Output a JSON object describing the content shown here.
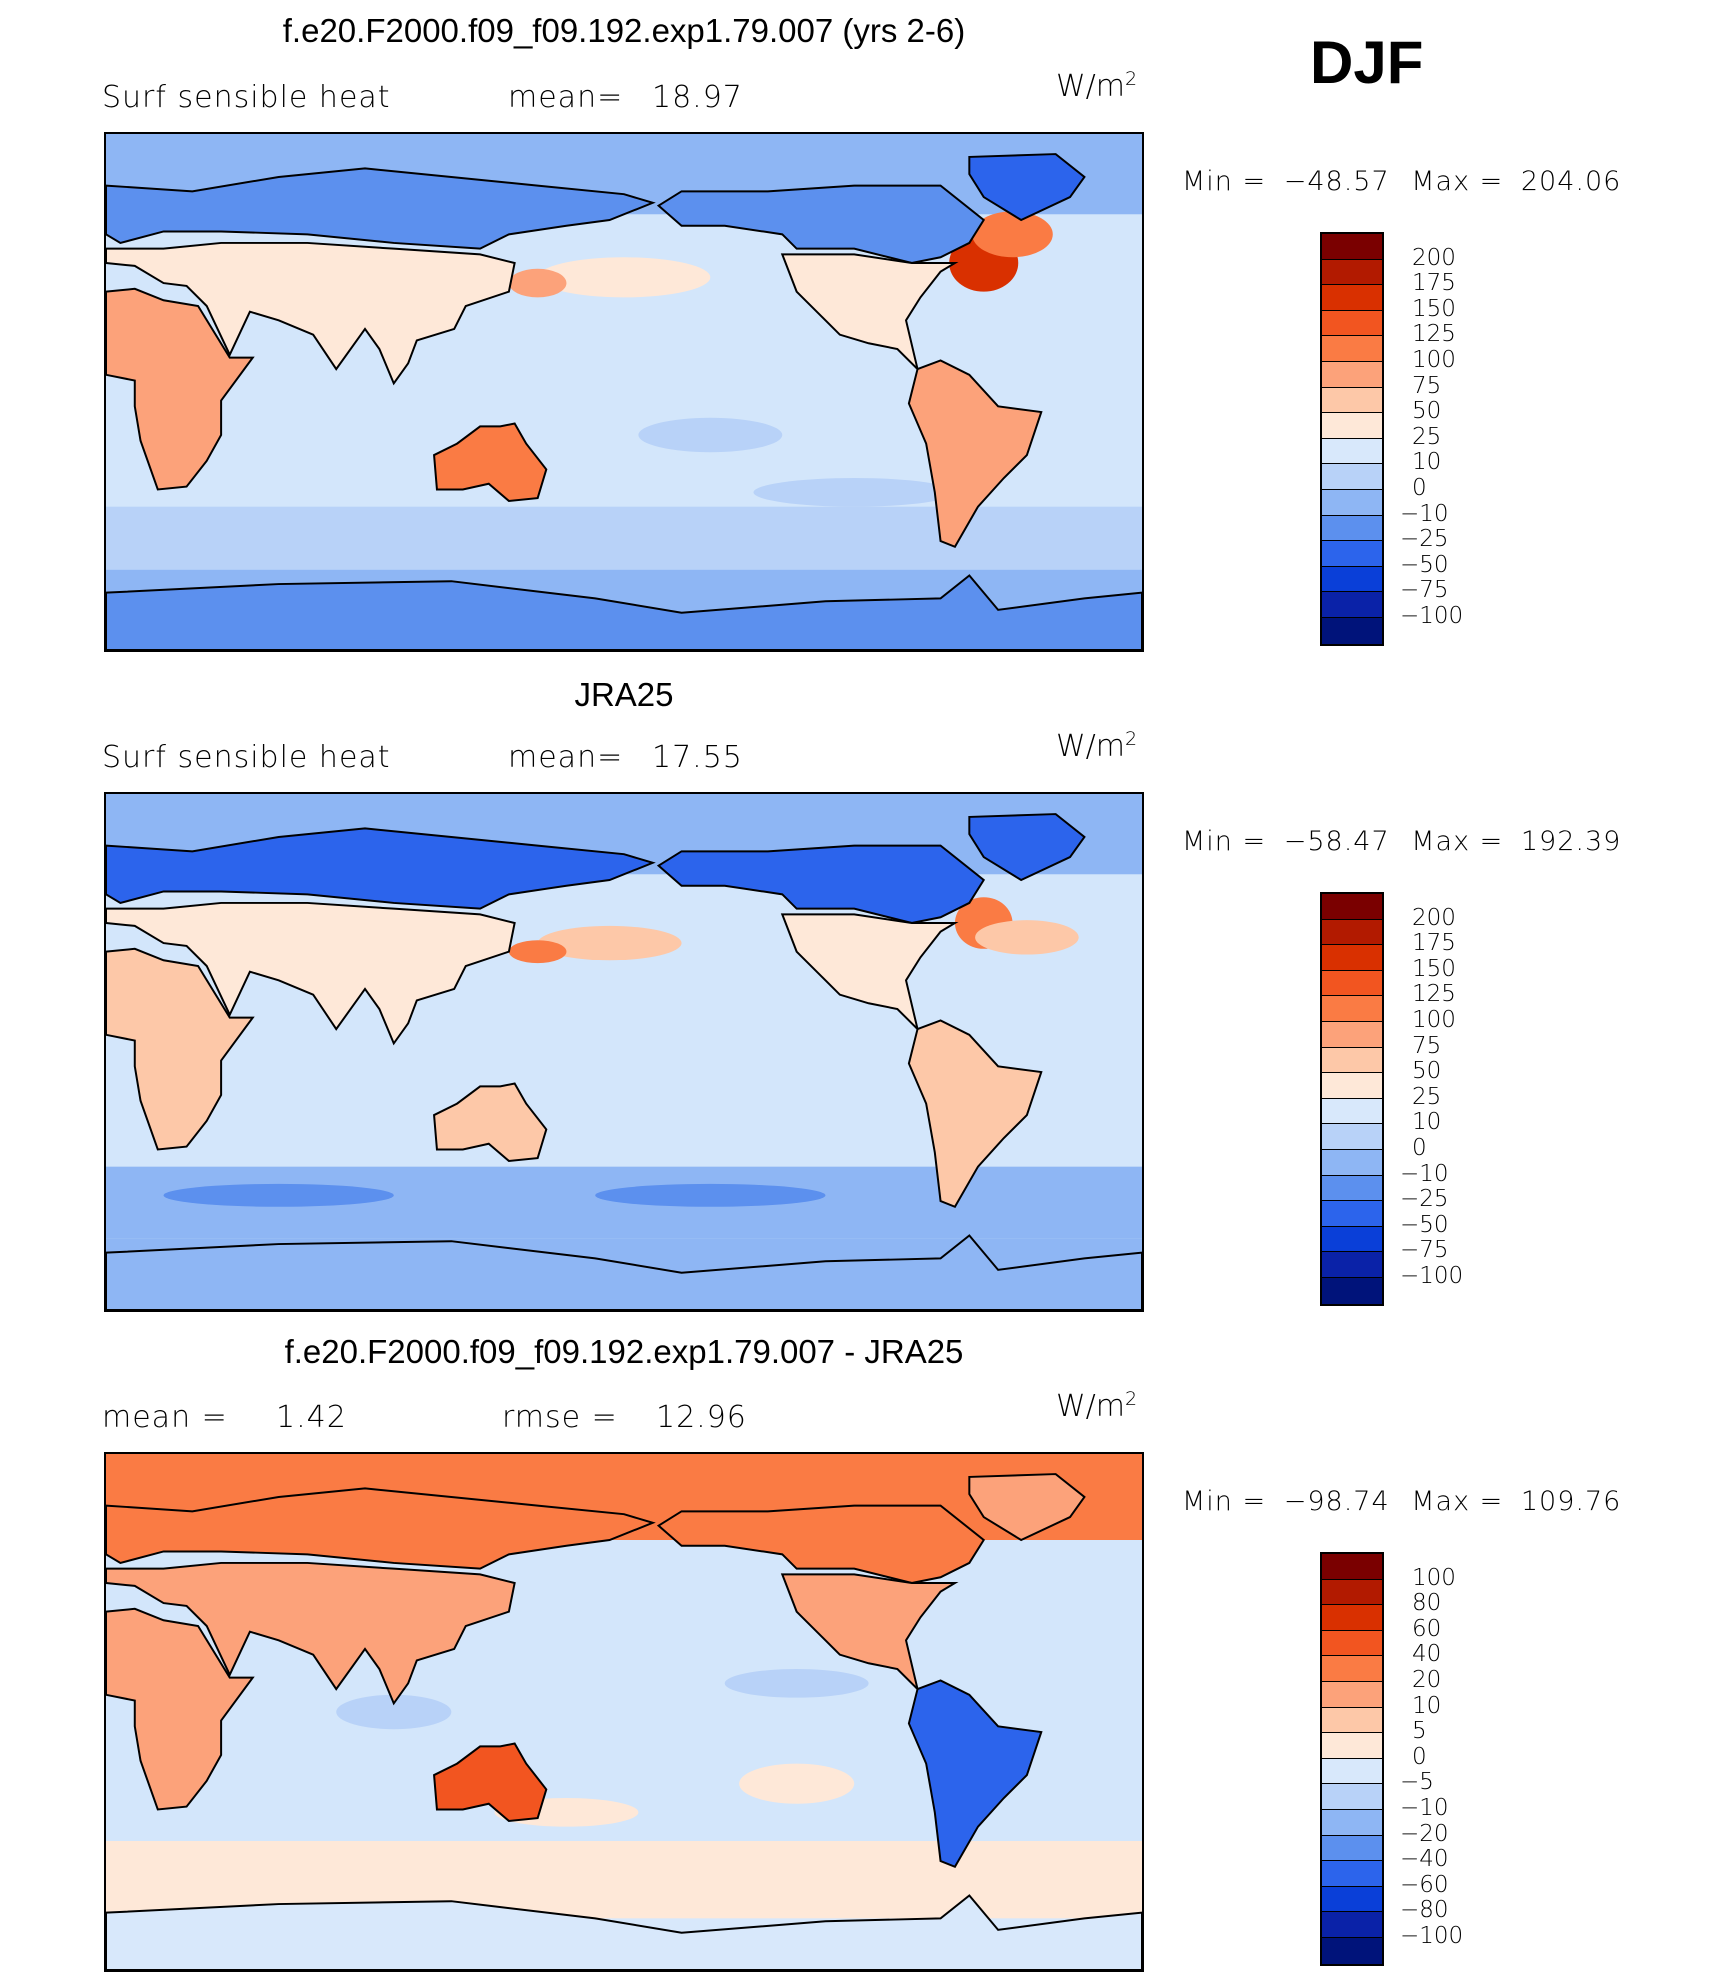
{
  "season": "DJF",
  "panels": [
    {
      "id": "model",
      "title": "f.e20.F2000.f09_f09.192.exp1.79.007 (yrs 2-6)",
      "left_label": "Surf  sensible  heat",
      "stat1_label": "mean=",
      "stat1_value": "18.97",
      "stat2_label": "",
      "stat2_value": "",
      "units_base": "W/m",
      "units_exp": "2",
      "min_label": "Min  =",
      "min_value": "−48.57",
      "max_label": "Max  =",
      "max_value": "204.06",
      "colorbar": {
        "labels": [
          "200",
          "175",
          "150",
          "125",
          "100",
          "75",
          "50",
          "25",
          "10",
          "0",
          "−10",
          "−25",
          "−50",
          "−75",
          "−100"
        ],
        "colors": [
          "#7a0000",
          "#b21a00",
          "#d93000",
          "#f25520",
          "#fa7b44",
          "#fca27a",
          "#fdc8a8",
          "#fee8d8",
          "#d8e8fb",
          "#b8d2f8",
          "#8eb6f4",
          "#5c90ee",
          "#2c64ec",
          "#0a3fd8",
          "#0a22a8",
          "#00137a"
        ]
      },
      "map_fields": [
        {
          "kind": "ocean",
          "color": "#d3e6fb"
        },
        {
          "kind": "band",
          "lat_top": 90,
          "lat_bot": 62,
          "color": "#8eb6f4"
        },
        {
          "kind": "band",
          "lat_top": -40,
          "lat_bot": -62,
          "color": "#b8d2f8"
        },
        {
          "kind": "band",
          "lat_top": -62,
          "lat_bot": -90,
          "color": "#8eb6f4"
        },
        {
          "kind": "blob",
          "lon": 180,
          "lat": 40,
          "rx": 30,
          "ry": 7,
          "color": "#fee8d8"
        },
        {
          "kind": "blob",
          "lon": 150,
          "lat": 38,
          "rx": 10,
          "ry": 5,
          "color": "#fca27a"
        },
        {
          "kind": "blob",
          "lon": -55,
          "lat": 45,
          "rx": 12,
          "ry": 10,
          "color": "#d93000"
        },
        {
          "kind": "blob",
          "lon": -45,
          "lat": 55,
          "rx": 14,
          "ry": 8,
          "color": "#fa7b44"
        },
        {
          "kind": "blob",
          "lon": -150,
          "lat": -15,
          "rx": 25,
          "ry": 6,
          "color": "#b8d2f8"
        },
        {
          "kind": "blob",
          "lon": -100,
          "lat": -35,
          "rx": 35,
          "ry": 5,
          "color": "#b8d2f8"
        }
      ],
      "land_colors": {
        "eurasia_north": "#5c90ee",
        "eurasia_south": "#fee8d8",
        "africa": "#fca27a",
        "australia": "#fa7b44",
        "north_america_north": "#5c90ee",
        "north_america_south": "#fee8d8",
        "south_america": "#fca27a",
        "greenland": "#2c64ec",
        "antarctica": "#5c90ee"
      }
    },
    {
      "id": "obs",
      "title": "JRA25",
      "left_label": "Surf  sensible  heat",
      "stat1_label": "mean=",
      "stat1_value": "17.55",
      "stat2_label": "",
      "stat2_value": "",
      "units_base": "W/m",
      "units_exp": "2",
      "min_label": "Min  =",
      "min_value": "−58.47",
      "max_label": "Max  =",
      "max_value": "192.39",
      "colorbar": {
        "labels": [
          "200",
          "175",
          "150",
          "125",
          "100",
          "75",
          "50",
          "25",
          "10",
          "0",
          "−10",
          "−25",
          "−50",
          "−75",
          "−100"
        ],
        "colors": [
          "#7a0000",
          "#b21a00",
          "#d93000",
          "#f25520",
          "#fa7b44",
          "#fca27a",
          "#fdc8a8",
          "#fee8d8",
          "#d8e8fb",
          "#b8d2f8",
          "#8eb6f4",
          "#5c90ee",
          "#2c64ec",
          "#0a3fd8",
          "#0a22a8",
          "#00137a"
        ]
      },
      "map_fields": [
        {
          "kind": "ocean",
          "color": "#d3e6fb"
        },
        {
          "kind": "band",
          "lat_top": 90,
          "lat_bot": 62,
          "color": "#8eb6f4"
        },
        {
          "kind": "band",
          "lat_top": -40,
          "lat_bot": -65,
          "color": "#8eb6f4"
        },
        {
          "kind": "band",
          "lat_top": -65,
          "lat_bot": -90,
          "color": "#8eb6f4"
        },
        {
          "kind": "blob",
          "lon": -150,
          "lat": -50,
          "rx": 40,
          "ry": 4,
          "color": "#5c90ee"
        },
        {
          "kind": "blob",
          "lon": 60,
          "lat": -50,
          "rx": 40,
          "ry": 4,
          "color": "#5c90ee"
        },
        {
          "kind": "blob",
          "lon": 175,
          "lat": 38,
          "rx": 25,
          "ry": 6,
          "color": "#fdc8a8"
        },
        {
          "kind": "blob",
          "lon": 150,
          "lat": 35,
          "rx": 10,
          "ry": 4,
          "color": "#fa7b44"
        },
        {
          "kind": "blob",
          "lon": -55,
          "lat": 45,
          "rx": 10,
          "ry": 9,
          "color": "#fa7b44"
        },
        {
          "kind": "blob",
          "lon": -40,
          "lat": 40,
          "rx": 18,
          "ry": 6,
          "color": "#fdc8a8"
        }
      ],
      "land_colors": {
        "eurasia_north": "#2c64ec",
        "eurasia_south": "#fee8d8",
        "africa": "#fdc8a8",
        "australia": "#fdc8a8",
        "north_america_north": "#2c64ec",
        "north_america_south": "#fee8d8",
        "south_america": "#fdc8a8",
        "greenland": "#2c64ec",
        "antarctica": "#8eb6f4"
      }
    },
    {
      "id": "diff",
      "title": "f.e20.F2000.f09_f09.192.exp1.79.007 - JRA25",
      "left_label": "mean  =",
      "stat1_label": "",
      "stat1_value": "1.42",
      "stat2_label": "rmse  =",
      "stat2_value": "12.96",
      "units_base": "W/m",
      "units_exp": "2",
      "min_label": "Min  =",
      "min_value": "−98.74",
      "max_label": "Max  =",
      "max_value": "109.76",
      "colorbar": {
        "labels": [
          "100",
          "80",
          "60",
          "40",
          "20",
          "10",
          "5",
          "0",
          "−5",
          "−10",
          "−20",
          "−40",
          "−60",
          "−80",
          "−100"
        ],
        "colors": [
          "#7a0000",
          "#b21a00",
          "#d93000",
          "#f25520",
          "#fa7b44",
          "#fca27a",
          "#fdc8a8",
          "#fee8d8",
          "#d8e8fb",
          "#b8d2f8",
          "#8eb6f4",
          "#5c90ee",
          "#2c64ec",
          "#0a3fd8",
          "#0a22a8",
          "#00137a"
        ]
      },
      "map_fields": [
        {
          "kind": "ocean",
          "color": "#d3e6fb"
        },
        {
          "kind": "band",
          "lat_top": 90,
          "lat_bot": 60,
          "color": "#fa7b44"
        },
        {
          "kind": "band",
          "lat_top": -45,
          "lat_bot": -72,
          "color": "#fee8d8"
        },
        {
          "kind": "band",
          "lat_top": -72,
          "lat_bot": -90,
          "color": "#d8e8fb"
        },
        {
          "kind": "blob",
          "lon": 100,
          "lat": 0,
          "rx": 20,
          "ry": 6,
          "color": "#b8d2f8"
        },
        {
          "kind": "blob",
          "lon": -120,
          "lat": 10,
          "rx": 25,
          "ry": 5,
          "color": "#b8d2f8"
        },
        {
          "kind": "blob",
          "lon": -120,
          "lat": -25,
          "rx": 20,
          "ry": 7,
          "color": "#fee8d8"
        },
        {
          "kind": "blob",
          "lon": 160,
          "lat": -35,
          "rx": 25,
          "ry": 5,
          "color": "#fee8d8"
        }
      ],
      "land_colors": {
        "eurasia_north": "#fa7b44",
        "eurasia_south": "#fca27a",
        "africa": "#fca27a",
        "australia": "#f25520",
        "north_america_north": "#fa7b44",
        "north_america_south": "#fca27a",
        "south_america": "#2c64ec",
        "greenland": "#fca27a",
        "antarctica": "#d8e8fb"
      }
    }
  ]
}
